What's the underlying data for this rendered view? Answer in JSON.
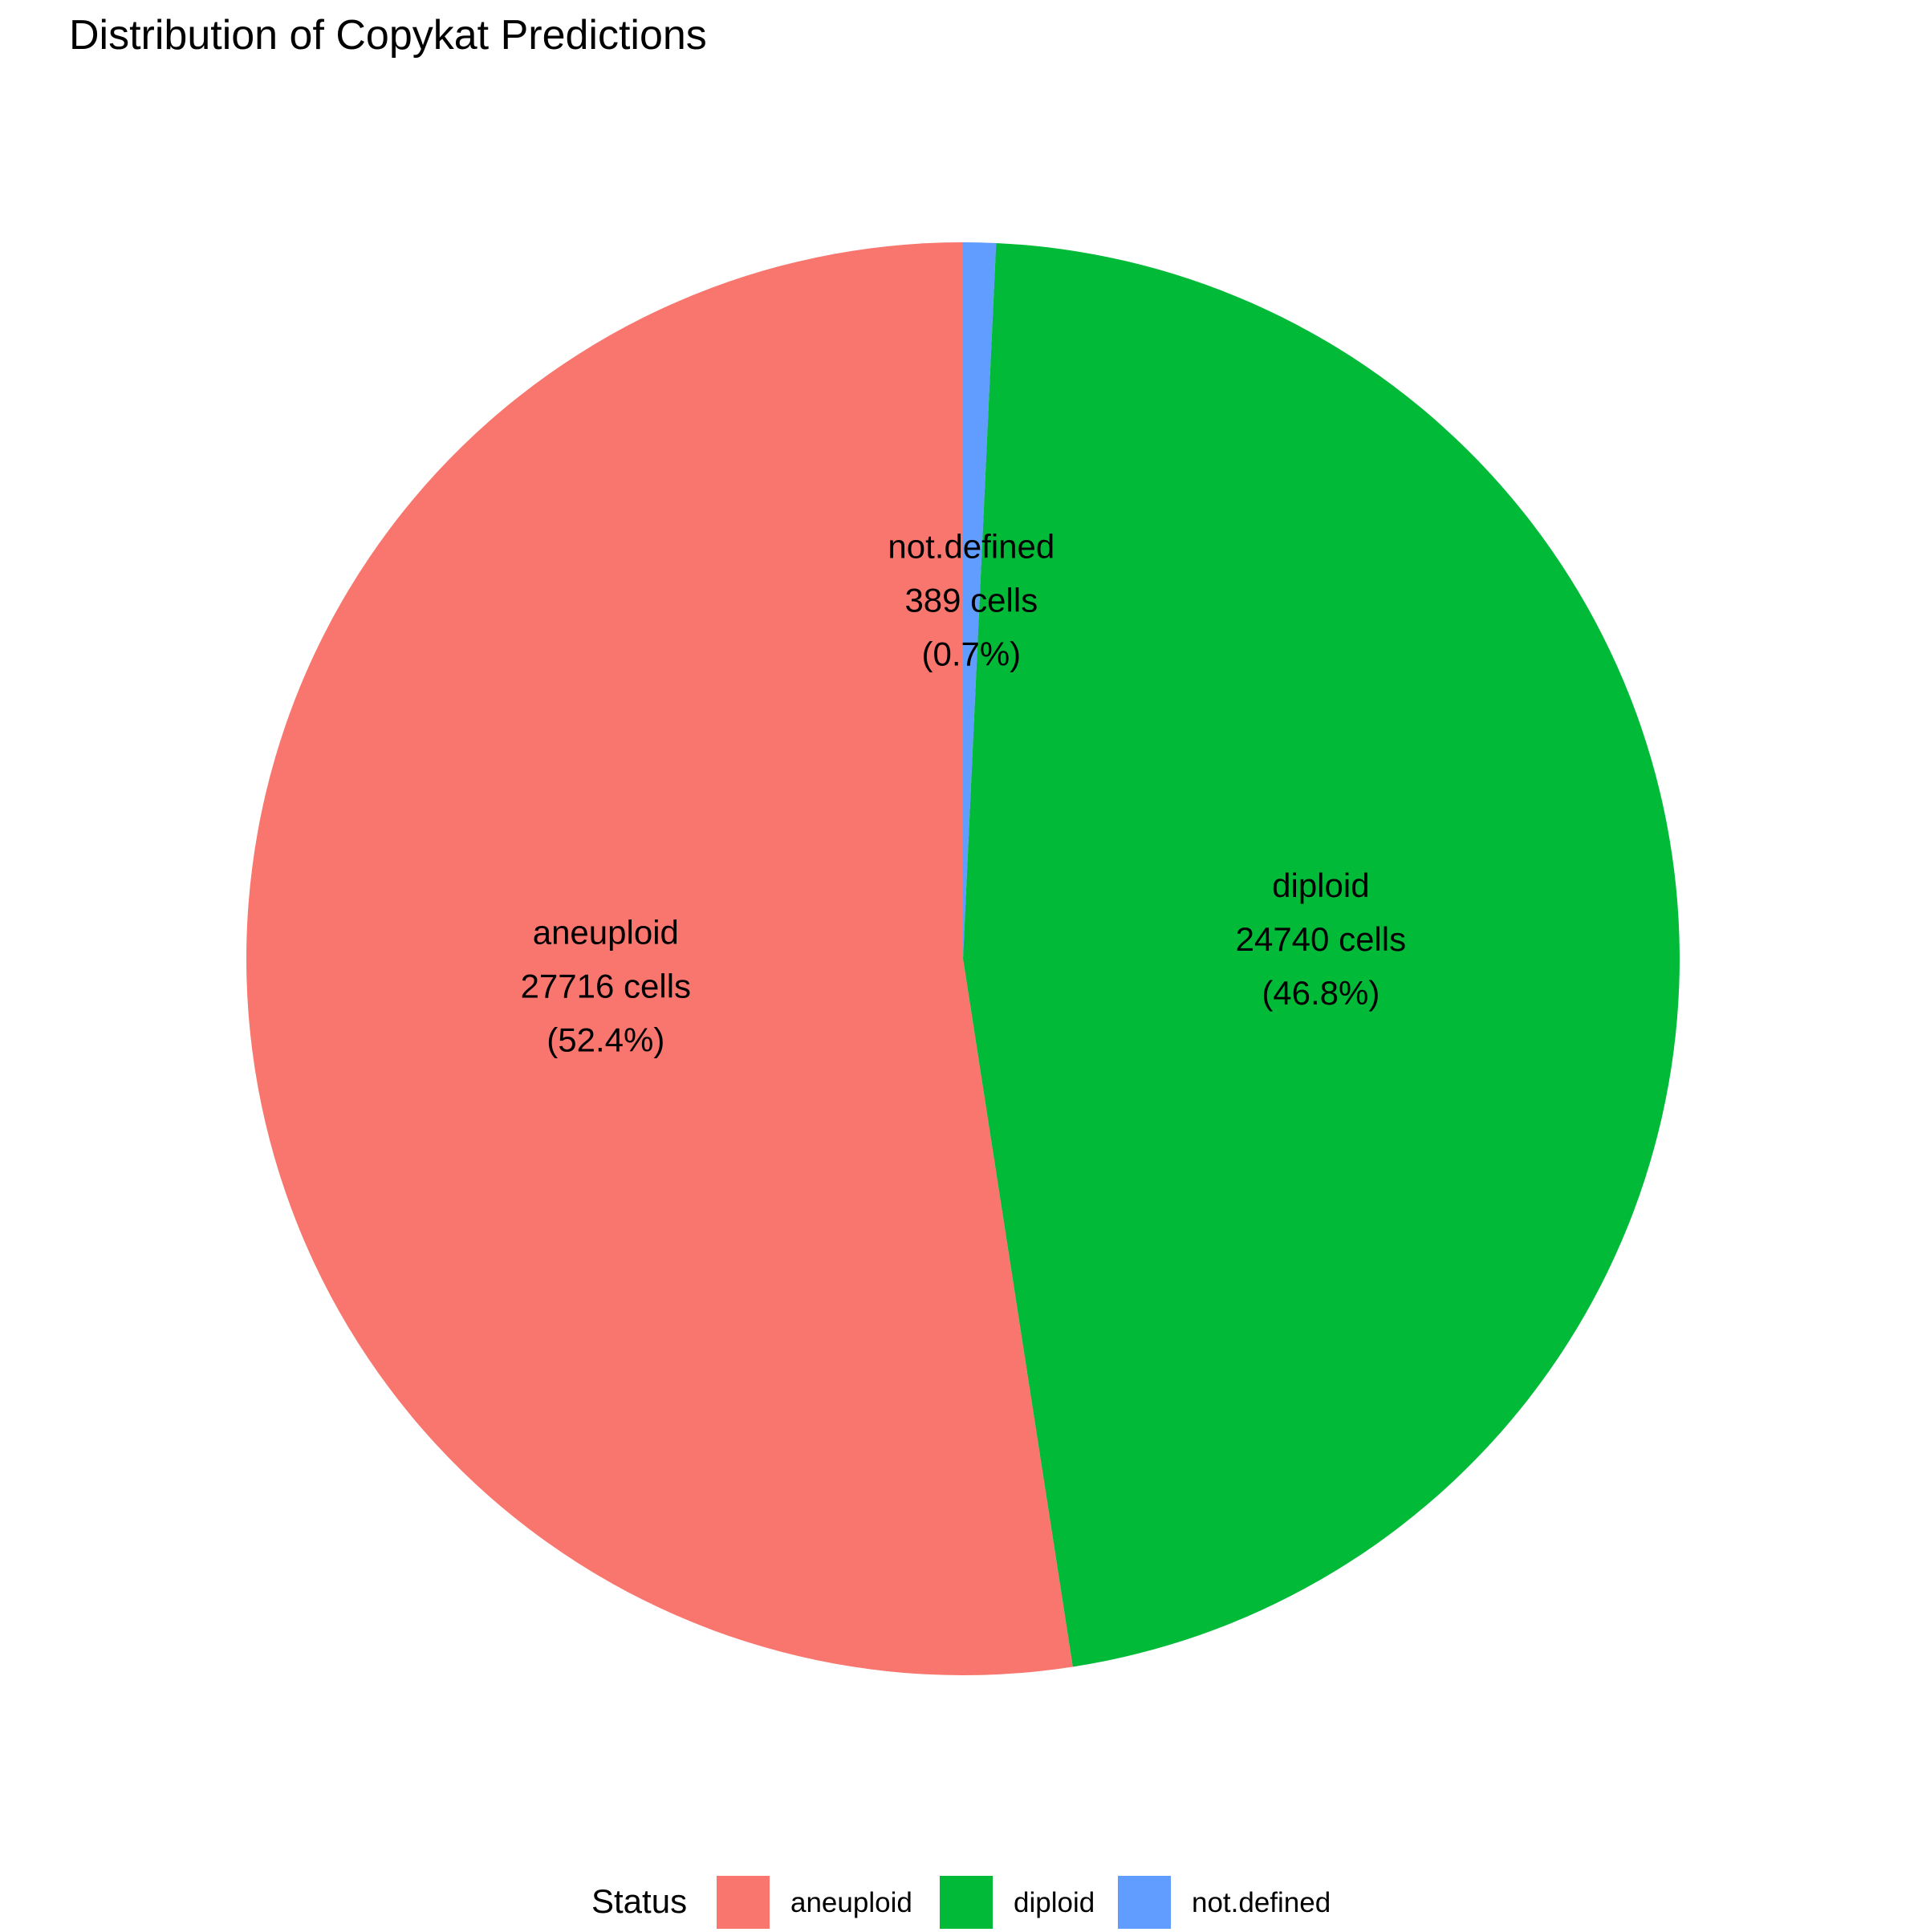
{
  "chart_data": {
    "type": "pie",
    "title": "Distribution of Copykat Predictions",
    "slices": [
      {
        "label": "aneuploid",
        "count": 27716,
        "count_text": "27716 cells",
        "percent_text": "(52.4%)",
        "color": "#F8766D"
      },
      {
        "label": "diploid",
        "count": 24740,
        "count_text": "24740 cells",
        "percent_text": "(46.8%)",
        "color": "#00BA38"
      },
      {
        "label": "not.defined",
        "count": 389,
        "count_text": "389 cells",
        "percent_text": "(0.7%)",
        "color": "#619CFF"
      }
    ],
    "legend": {
      "title": "Status",
      "placement": "bottom",
      "items": [
        "aneuploid",
        "diploid",
        "not.defined"
      ]
    }
  }
}
